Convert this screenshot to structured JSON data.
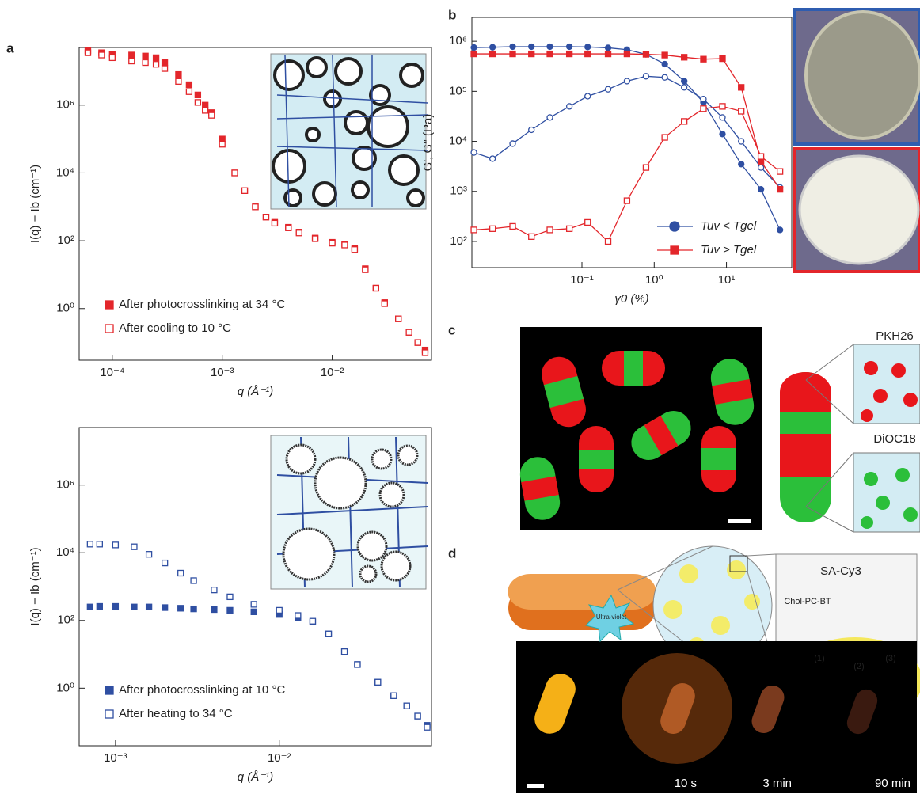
{
  "panels": [
    "a",
    "b",
    "c",
    "d"
  ],
  "annotations": {
    "c_top": "PKH26",
    "c_bottom": "DiOC18",
    "d_dye": "SA-Cy3",
    "d_linker": "Chol-PC-BT",
    "d_steps": [
      "(1)",
      "(2)",
      "(3)"
    ],
    "d_uv": "Ultra-violet",
    "d_times": [
      "10 s",
      "3 min",
      "90 min"
    ]
  },
  "chart_data": [
    {
      "type": "scatter",
      "log_x": true,
      "log_y": true,
      "x_label": "q (Å⁻¹)",
      "y_label": "I(q) − Ib (cm⁻¹)",
      "legend": "lower left",
      "xlim": [
        5e-05,
        0.08
      ],
      "ylim": [
        0.03,
        50000000
      ],
      "xticks": [
        {
          "value": 0.0001,
          "label": "10⁻⁴"
        },
        {
          "value": 0.001,
          "label": "10⁻³"
        },
        {
          "value": 0.01,
          "label": "10⁻²"
        }
      ],
      "yticks": [
        {
          "value": 1,
          "label": "10⁰"
        },
        {
          "value": 100,
          "label": "10²"
        },
        {
          "value": 10000,
          "label": "10⁴"
        },
        {
          "value": 1000000,
          "label": "10⁶"
        }
      ],
      "x": [
        6e-05,
        8e-05,
        0.0001,
        0.00015,
        0.0002,
        0.00025,
        0.0003,
        0.0004,
        0.0005,
        0.0006,
        0.0007,
        0.0008,
        0.001,
        0.0013,
        0.0016,
        0.002,
        0.0025,
        0.003,
        0.004,
        0.005,
        0.007,
        0.01,
        0.013,
        0.016,
        0.02,
        0.025,
        0.03,
        0.04,
        0.05,
        0.06,
        0.07
      ],
      "series": [
        {
          "name": "After photocrosslinking at 34 °C",
          "color": "#e3262b",
          "marker": "square",
          "filled": true,
          "values": [
            40000000,
            35000000,
            32000000,
            30000000,
            28000000,
            25000000,
            18000000,
            8000000,
            4000000,
            2000000,
            1000000,
            600000,
            100000,
            10000,
            3000,
            1000,
            500,
            350,
            250,
            180,
            120,
            90,
            80,
            60,
            15,
            4,
            1.5,
            0.5,
            0.2,
            0.1,
            0.06
          ]
        },
        {
          "name": "After cooling to 10 °C",
          "color": "#e3262b",
          "marker": "square",
          "filled": false,
          "values": [
            35000000,
            30000000,
            25000000,
            20000000,
            18000000,
            16000000,
            12000000,
            5000000,
            2500000,
            1200000,
            700000,
            500000,
            70000,
            10000,
            3000,
            1000,
            500,
            330,
            240,
            170,
            115,
            85,
            75,
            55,
            14,
            4,
            1.4,
            0.5,
            0.2,
            0.1,
            0.05
          ]
        }
      ]
    },
    {
      "type": "scatter",
      "log_x": true,
      "log_y": true,
      "x_label": "q (Å⁻¹)",
      "y_label": "I(q) − Ib (cm⁻¹)",
      "legend": "lower left",
      "xlim": [
        0.0006,
        0.085
      ],
      "ylim": [
        0.02,
        50000000
      ],
      "xticks": [
        {
          "value": 0.001,
          "label": "10⁻³"
        },
        {
          "value": 0.01,
          "label": "10⁻²"
        }
      ],
      "yticks": [
        {
          "value": 1,
          "label": "10⁰"
        },
        {
          "value": 100,
          "label": "10²"
        },
        {
          "value": 10000,
          "label": "10⁴"
        },
        {
          "value": 1000000,
          "label": "10⁶"
        }
      ],
      "x": [
        0.0007,
        0.0008,
        0.001,
        0.0013,
        0.0016,
        0.002,
        0.0025,
        0.003,
        0.004,
        0.005,
        0.007,
        0.01,
        0.013,
        0.016,
        0.02,
        0.025,
        0.03,
        0.04,
        0.05,
        0.06,
        0.07,
        0.08
      ],
      "series": [
        {
          "name": "After photocrosslinking at 10 °C",
          "color": "#2f4fa2",
          "marker": "square",
          "filled": true,
          "values": [
            250,
            260,
            260,
            250,
            250,
            240,
            230,
            220,
            210,
            200,
            180,
            150,
            120,
            90,
            40,
            12,
            5,
            1.5,
            0.6,
            0.3,
            0.15,
            0.08
          ]
        },
        {
          "name": "After heating to 34 °C",
          "color": "#2f4fa2",
          "marker": "square",
          "filled": false,
          "values": [
            18000,
            18000,
            17000,
            15000,
            9000,
            5000,
            2500,
            1500,
            800,
            500,
            300,
            200,
            140,
            95,
            40,
            12,
            5,
            1.5,
            0.6,
            0.3,
            0.15,
            0.07
          ]
        }
      ]
    },
    {
      "type": "line",
      "log_x": true,
      "log_y": true,
      "x_label": "γ0 (%)",
      "y_label": "G′, G′′ (Pa)",
      "legend": "lower right",
      "xlim": [
        0.003,
        80
      ],
      "ylim": [
        30,
        3000000
      ],
      "xticks": [
        {
          "value": 0.1,
          "label": "10⁻¹"
        },
        {
          "value": 1,
          "label": "10⁰"
        },
        {
          "value": 10,
          "label": "10¹"
        }
      ],
      "yticks": [
        {
          "value": 100,
          "label": "10²"
        },
        {
          "value": 1000,
          "label": "10³"
        },
        {
          "value": 10000,
          "label": "10⁴"
        },
        {
          "value": 100000,
          "label": "10⁵"
        },
        {
          "value": 1000000,
          "label": "10⁶"
        }
      ],
      "x": [
        0.0032,
        0.0058,
        0.011,
        0.02,
        0.036,
        0.067,
        0.12,
        0.23,
        0.42,
        0.77,
        1.4,
        2.6,
        4.8,
        8.8,
        16,
        30,
        55
      ],
      "series": [
        {
          "name": "Tuv < Tgel",
          "color": "#2f4fa2",
          "marker": "circle",
          "filled": true,
          "values": [
            750000,
            760000,
            780000,
            780000,
            780000,
            780000,
            770000,
            740000,
            680000,
            550000,
            350000,
            160000,
            60000,
            14000,
            3500,
            1100,
            170
          ]
        },
        {
          "color": "#2f4fa2",
          "marker": "circle",
          "filled": false,
          "values": [
            6000,
            4500,
            9000,
            17000,
            30000,
            50000,
            80000,
            110000,
            160000,
            200000,
            190000,
            120000,
            70000,
            30000,
            10000,
            3000,
            1200
          ]
        },
        {
          "name": "Tuv > Tgel",
          "color": "#e3262b",
          "marker": "square",
          "filled": true,
          "values": [
            560000,
            560000,
            560000,
            560000,
            560000,
            560000,
            560000,
            560000,
            560000,
            550000,
            530000,
            480000,
            440000,
            450000,
            120000,
            4000,
            1100
          ]
        },
        {
          "color": "#e3262b",
          "marker": "square",
          "filled": false,
          "values": [
            170,
            180,
            200,
            125,
            170,
            180,
            240,
            100,
            650,
            3000,
            12000,
            25000,
            45000,
            50000,
            40000,
            5000,
            2500
          ]
        }
      ]
    }
  ]
}
